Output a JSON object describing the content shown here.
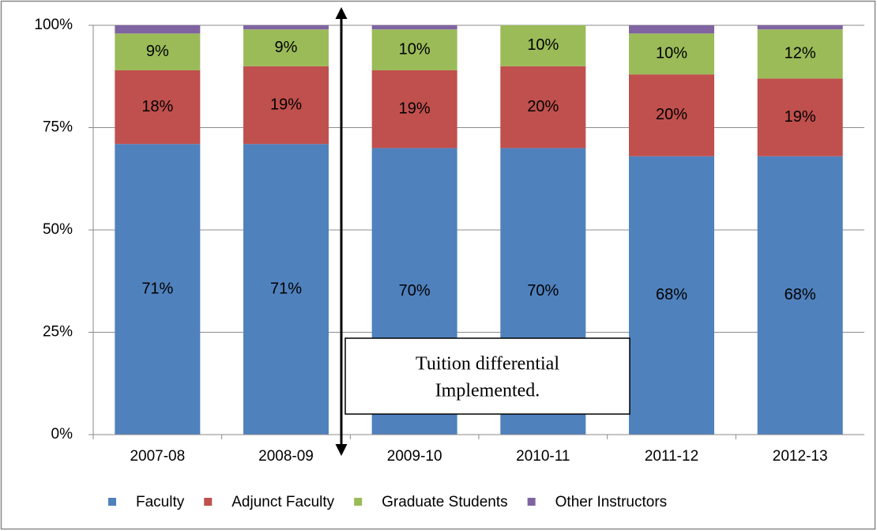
{
  "chart_data": {
    "type": "stacked_bar",
    "categories": [
      "2007-08",
      "2008-09",
      "2009-10",
      "2010-11",
      "2011-12",
      "2012-13"
    ],
    "series": [
      {
        "name": "Faculty",
        "color": "#4f81bd",
        "values": [
          71,
          71,
          70,
          70,
          68,
          68
        ],
        "value_labels": [
          "71%",
          "71%",
          "70%",
          "70%",
          "68%",
          "68%"
        ]
      },
      {
        "name": "Adjunct Faculty",
        "color": "#c0504d",
        "values": [
          18,
          19,
          19,
          20,
          20,
          19
        ],
        "value_labels": [
          "18%",
          "19%",
          "19%",
          "20%",
          "20%",
          "19%"
        ]
      },
      {
        "name": "Graduate Students",
        "color": "#9bbb59",
        "values": [
          9,
          9,
          10,
          10,
          10,
          12
        ],
        "value_labels": [
          "9%",
          "9%",
          "10%",
          "10%",
          "10%",
          "12%"
        ]
      },
      {
        "name": "Other Instructors",
        "color": "#8064a2",
        "values": [
          2,
          2,
          2,
          2,
          2,
          2
        ]
      }
    ],
    "ylim": [
      0,
      100
    ],
    "yticks": [
      {
        "value": 0,
        "label": "0%"
      },
      {
        "value": 25,
        "label": "25%"
      },
      {
        "value": 50,
        "label": "50%"
      },
      {
        "value": 75,
        "label": "75%"
      },
      {
        "value": 100,
        "label": "100%"
      }
    ],
    "grid": true,
    "legend": "bottom",
    "annotation": [
      "Tuition differential",
      "Implemented."
    ]
  }
}
